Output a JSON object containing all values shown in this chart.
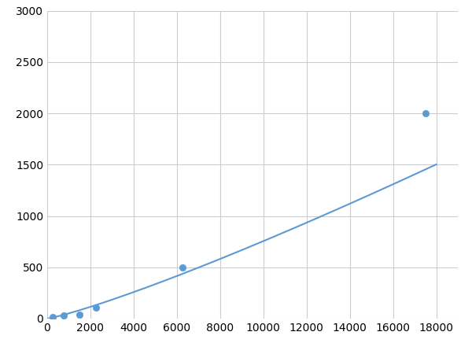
{
  "x_points": [
    250,
    750,
    1500,
    2250,
    6250,
    17500
  ],
  "y_points": [
    18,
    30,
    42,
    110,
    500,
    2000
  ],
  "line_color": "#5B9BD5",
  "marker_color": "#5B9BD5",
  "marker_size": 6,
  "linewidth": 1.5,
  "xlim": [
    0,
    19000
  ],
  "ylim": [
    0,
    3000
  ],
  "xticks": [
    0,
    2000,
    4000,
    6000,
    8000,
    10000,
    12000,
    14000,
    16000,
    18000
  ],
  "yticks": [
    0,
    500,
    1000,
    1500,
    2000,
    2500,
    3000
  ],
  "grid_color": "#CCCCCC",
  "grid_linewidth": 0.8,
  "bg_color": "#FFFFFF",
  "fig_bg_color": "#FFFFFF",
  "tick_fontsize": 10
}
